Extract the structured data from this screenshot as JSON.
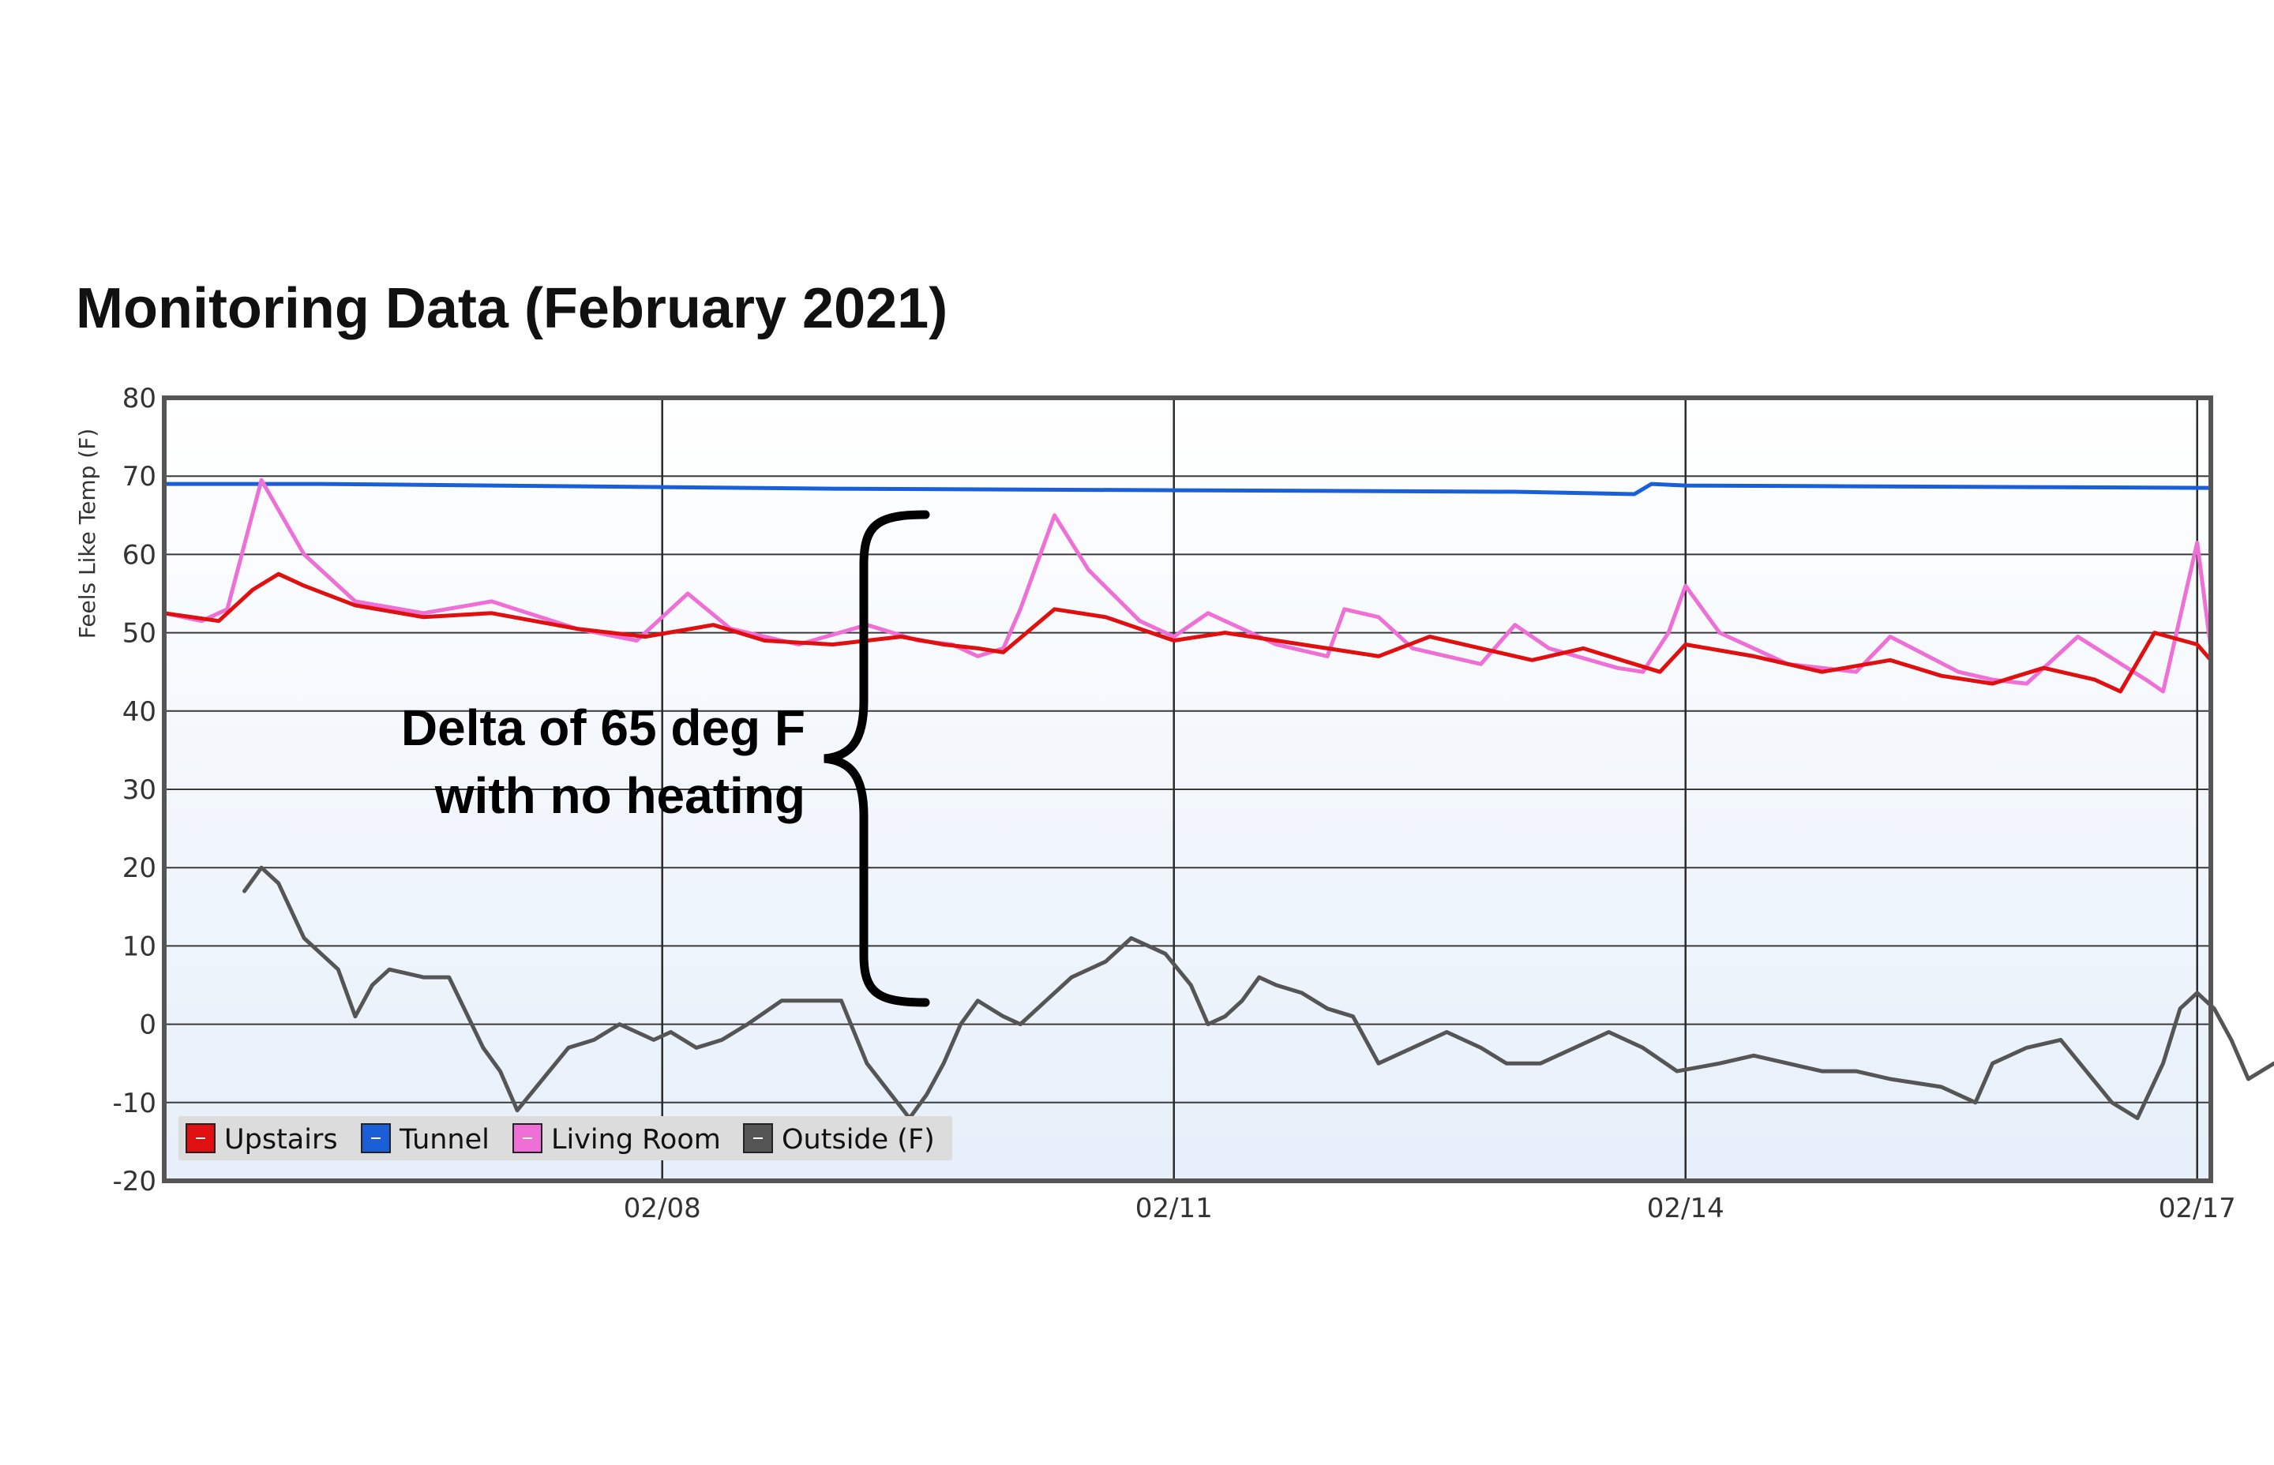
{
  "chart_data": {
    "type": "line",
    "title": "Monitoring Data (February 2021)",
    "ylabel": "Feels Like Temp (F)",
    "xlabel": "",
    "ylim": [
      -20,
      80
    ],
    "yticks": [
      80,
      70,
      60,
      50,
      40,
      30,
      20,
      10,
      0,
      -10,
      -20
    ],
    "xlim": [
      5.08,
      17.08
    ],
    "xticks": [
      {
        "value": 8,
        "label": "02/08"
      },
      {
        "value": 11,
        "label": "02/11"
      },
      {
        "value": 14,
        "label": "02/14"
      },
      {
        "value": 17,
        "label": "02/17"
      }
    ],
    "x_unit": "day of February 2021",
    "grid": true,
    "legend_position": "bottom-left",
    "annotation": [
      "Delta of 65 deg F",
      "with no heating"
    ],
    "series": [
      {
        "name": "Upstairs",
        "color": "#e01010",
        "x": [
          5.08,
          5.4,
          5.6,
          5.75,
          5.9,
          6.2,
          6.6,
          7.0,
          7.5,
          7.9,
          8.3,
          8.6,
          9.0,
          9.4,
          9.65,
          9.85,
          10.0,
          10.3,
          10.6,
          11.0,
          11.3,
          11.6,
          11.9,
          12.2,
          12.5,
          12.8,
          13.1,
          13.4,
          13.7,
          13.85,
          14.0,
          14.4,
          14.8,
          15.2,
          15.5,
          15.8,
          16.1,
          16.4,
          16.55,
          16.75,
          17.0,
          17.08
        ],
        "y": [
          52.5,
          51.5,
          55.5,
          57.5,
          56,
          53.5,
          52,
          52.5,
          50.5,
          49.5,
          51,
          49,
          48.5,
          49.5,
          48.5,
          48,
          47.5,
          53,
          52,
          49,
          50,
          49,
          48,
          47,
          49.5,
          48,
          46.5,
          48,
          46,
          45,
          48.5,
          47,
          45,
          46.5,
          44.5,
          43.5,
          45.5,
          44,
          42.5,
          50,
          48.5,
          46.5
        ]
      },
      {
        "name": "Tunnel",
        "color": "#1a5fd8",
        "x": [
          5.08,
          6.0,
          7.0,
          8.0,
          9.0,
          10.0,
          11.0,
          12.0,
          13.0,
          13.7,
          13.8,
          14.0,
          15.0,
          16.0,
          17.08
        ],
        "y": [
          69,
          69,
          68.8,
          68.6,
          68.4,
          68.3,
          68.2,
          68.1,
          68,
          67.7,
          69,
          68.8,
          68.7,
          68.6,
          68.5
        ]
      },
      {
        "name": "Living Room",
        "color": "#ee6fd6",
        "x": [
          5.08,
          5.3,
          5.45,
          5.65,
          5.9,
          6.2,
          6.6,
          7.0,
          7.5,
          7.85,
          8.0,
          8.15,
          8.4,
          8.8,
          9.2,
          9.5,
          9.7,
          9.85,
          10.0,
          10.1,
          10.3,
          10.5,
          10.8,
          11.0,
          11.2,
          11.4,
          11.6,
          11.8,
          11.9,
          12.0,
          12.2,
          12.4,
          12.8,
          13.0,
          13.2,
          13.6,
          13.75,
          13.9,
          14.0,
          14.2,
          14.6,
          15.0,
          15.2,
          15.6,
          15.8,
          16.0,
          16.3,
          16.7,
          16.8,
          17.0,
          17.08
        ],
        "y": [
          52.5,
          51.5,
          53,
          69.5,
          60,
          54,
          52.5,
          54,
          50.5,
          49,
          52,
          55,
          50.5,
          48.5,
          51,
          49,
          48.5,
          47,
          48,
          53,
          65,
          58,
          51.5,
          49.5,
          52.5,
          50.5,
          48.5,
          47.5,
          47,
          53,
          52,
          48,
          46,
          51,
          48,
          45.5,
          45,
          50,
          56,
          50,
          46,
          45,
          49.5,
          45,
          44,
          43.5,
          49.5,
          44,
          42.5,
          61.5,
          48
        ]
      },
      {
        "name": "Outside (F)",
        "color": "#555555",
        "x": [
          5.55,
          5.65,
          5.75,
          5.9,
          6.0,
          6.1,
          6.2,
          6.3,
          6.4,
          6.6,
          6.75,
          6.95,
          7.05,
          7.15,
          7.3,
          7.45,
          7.6,
          7.75,
          7.95,
          8.05,
          8.2,
          8.35,
          8.5,
          8.7,
          8.9,
          9.05,
          9.2,
          9.45,
          9.55,
          9.65,
          9.75,
          9.85,
          10.0,
          10.1,
          10.25,
          10.4,
          10.6,
          10.75,
          10.95,
          11.1,
          11.2,
          11.3,
          11.4,
          11.5,
          11.6,
          11.75,
          11.9,
          12.05,
          12.2,
          12.4,
          12.6,
          12.8,
          12.95,
          13.15,
          13.35,
          13.55,
          13.75,
          13.95,
          14.2,
          14.4,
          14.6,
          14.8,
          15.0,
          15.2,
          15.5,
          15.7,
          15.8,
          16.0,
          16.2,
          16.5,
          16.65,
          16.8,
          16.9,
          17.0,
          17.1,
          17.2,
          17.3,
          17.45
        ],
        "y": [
          17,
          20,
          18,
          11,
          9,
          7,
          1,
          5,
          7,
          6,
          6,
          -3,
          -6,
          -11,
          -7,
          -3,
          -2,
          0,
          -2,
          -1,
          -3,
          -2,
          0,
          3,
          3,
          3,
          -5,
          -12,
          -9,
          -5,
          0,
          3,
          1,
          0,
          3,
          6,
          8,
          11,
          9,
          5,
          0,
          1,
          3,
          6,
          5,
          4,
          2,
          1,
          -5,
          -3,
          -1,
          -3,
          -5,
          -5,
          -3,
          -1,
          -3,
          -6,
          -5,
          -4,
          -5,
          -6,
          -6,
          -7,
          -8,
          -10,
          -5,
          -3,
          -2,
          -10,
          -12,
          -5,
          2,
          4,
          2,
          -2,
          -7,
          -5
        ]
      }
    ]
  }
}
